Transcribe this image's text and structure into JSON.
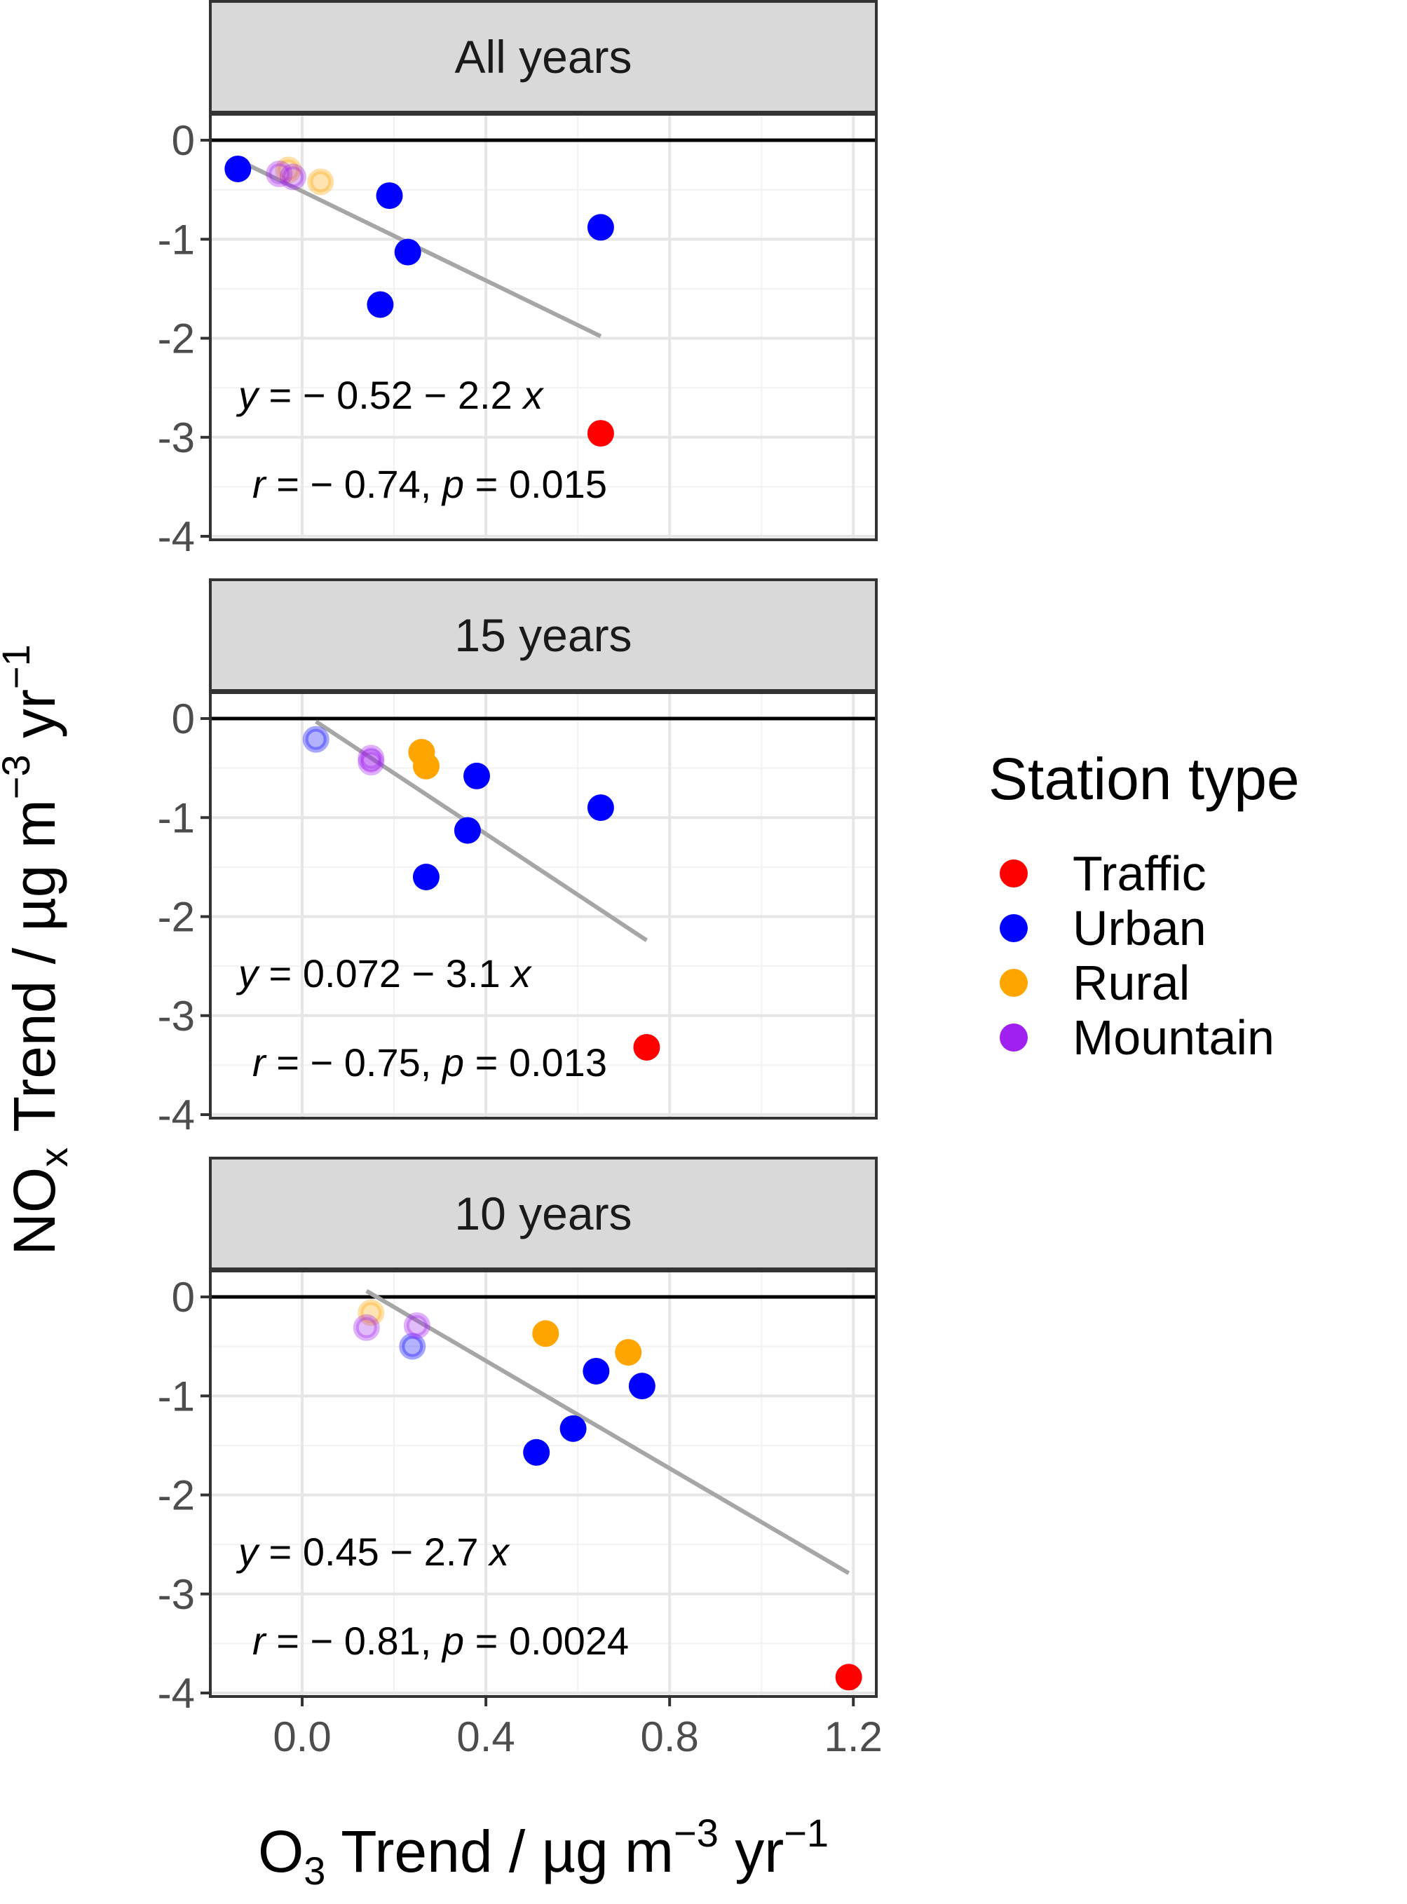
{
  "legend": {
    "title": "Station type",
    "items": [
      {
        "label": "Traffic",
        "color": "#ff0000"
      },
      {
        "label": "Urban",
        "color": "#0000ff"
      },
      {
        "label": "Rural",
        "color": "#ffa500"
      },
      {
        "label": "Mountain",
        "color": "#a020f0"
      }
    ]
  },
  "axes": {
    "x_title_main": "O",
    "x_title_sub": "3",
    "x_title_rest": " Trend / µg m",
    "x_title_sup1": "−3",
    "x_title_rest2": " yr",
    "x_title_sup2": "−1",
    "y_title_main": "NO",
    "y_title_sub": "x",
    "y_title_rest": " Trend / µg m",
    "y_title_sup1": "−3",
    "y_title_rest2": " yr",
    "y_title_sup2": "−1"
  },
  "chart_data": {
    "type": "scatter",
    "xlabel": "O3 Trend / µg m−3 yr−1",
    "ylabel": "NOx Trend / µg m−3 yr−1",
    "xlim": [
      -0.2,
      1.25
    ],
    "ylim": [
      -4,
      0
    ],
    "x_ticks": [
      {
        "value": 0.0,
        "label": "0.0"
      },
      {
        "value": 0.4,
        "label": "0.4"
      },
      {
        "value": 0.8,
        "label": "0.8"
      },
      {
        "value": 1.2,
        "label": "1.2"
      }
    ],
    "y_ticks": [
      {
        "value": 0,
        "label": "0"
      },
      {
        "value": -1,
        "label": "-1"
      },
      {
        "value": -2,
        "label": "-2"
      },
      {
        "value": -3,
        "label": "-3"
      },
      {
        "value": -4,
        "label": "-4"
      }
    ],
    "grid": true,
    "legend_position": "right",
    "reference_line_y": 0,
    "panels": [
      {
        "title": "All years",
        "regression": {
          "x_start": -0.14,
          "y_start": -0.2,
          "x_end": 0.65,
          "y_end": -1.98
        },
        "eq_y_text": "= − 0.52 − 2.2 ",
        "eq_r_text": " = − 0.74, ",
        "eq_p_text": " = 0.015",
        "points": [
          {
            "x": -0.14,
            "y": -0.29,
            "type": "Urban",
            "faded": false
          },
          {
            "x": 0.19,
            "y": -0.56,
            "type": "Urban",
            "faded": false
          },
          {
            "x": 0.23,
            "y": -1.13,
            "type": "Urban",
            "faded": false
          },
          {
            "x": 0.17,
            "y": -1.66,
            "type": "Urban",
            "faded": false
          },
          {
            "x": 0.65,
            "y": -0.88,
            "type": "Urban",
            "faded": false
          },
          {
            "x": 0.65,
            "y": -2.96,
            "type": "Traffic",
            "faded": false
          },
          {
            "x": -0.03,
            "y": -0.3,
            "type": "Rural",
            "faded": true
          },
          {
            "x": 0.04,
            "y": -0.42,
            "type": "Rural",
            "faded": true
          },
          {
            "x": -0.05,
            "y": -0.34,
            "type": "Mountain",
            "faded": true
          },
          {
            "x": -0.02,
            "y": -0.37,
            "type": "Mountain",
            "faded": true
          }
        ]
      },
      {
        "title": "15 years",
        "regression": {
          "x_start": 0.03,
          "y_start": -0.03,
          "x_end": 0.75,
          "y_end": -2.24
        },
        "eq_y_text": "= 0.072 − 3.1 ",
        "eq_r_text": " = − 0.75, ",
        "eq_p_text": " = 0.013",
        "points": [
          {
            "x": 0.38,
            "y": -0.58,
            "type": "Urban",
            "faded": false
          },
          {
            "x": 0.36,
            "y": -1.13,
            "type": "Urban",
            "faded": false
          },
          {
            "x": 0.27,
            "y": -1.6,
            "type": "Urban",
            "faded": false
          },
          {
            "x": 0.65,
            "y": -0.9,
            "type": "Urban",
            "faded": false
          },
          {
            "x": 0.75,
            "y": -3.32,
            "type": "Traffic",
            "faded": false
          },
          {
            "x": 0.26,
            "y": -0.34,
            "type": "Rural",
            "faded": false
          },
          {
            "x": 0.27,
            "y": -0.48,
            "type": "Rural",
            "faded": false
          },
          {
            "x": 0.03,
            "y": -0.21,
            "type": "Urban",
            "faded": true
          },
          {
            "x": 0.15,
            "y": -0.4,
            "type": "Mountain",
            "faded": true
          },
          {
            "x": 0.15,
            "y": -0.44,
            "type": "Mountain",
            "faded": true
          }
        ]
      },
      {
        "title": "10 years",
        "regression": {
          "x_start": 0.14,
          "y_start": 0.06,
          "x_end": 1.19,
          "y_end": -2.79
        },
        "eq_y_text": "= 0.45 − 2.7 ",
        "eq_r_text": " = − 0.81, ",
        "eq_p_text": " = 0.0024",
        "points": [
          {
            "x": 0.64,
            "y": -0.75,
            "type": "Urban",
            "faded": false
          },
          {
            "x": 0.74,
            "y": -0.9,
            "type": "Urban",
            "faded": false
          },
          {
            "x": 0.59,
            "y": -1.33,
            "type": "Urban",
            "faded": false
          },
          {
            "x": 0.51,
            "y": -1.57,
            "type": "Urban",
            "faded": false
          },
          {
            "x": 1.19,
            "y": -3.84,
            "type": "Traffic",
            "faded": false
          },
          {
            "x": 0.53,
            "y": -0.37,
            "type": "Rural",
            "faded": false
          },
          {
            "x": 0.71,
            "y": -0.56,
            "type": "Rural",
            "faded": false
          },
          {
            "x": 0.15,
            "y": -0.16,
            "type": "Rural",
            "faded": true
          },
          {
            "x": 0.24,
            "y": -0.5,
            "type": "Urban",
            "faded": true
          },
          {
            "x": 0.14,
            "y": -0.31,
            "type": "Mountain",
            "faded": true
          },
          {
            "x": 0.25,
            "y": -0.29,
            "type": "Mountain",
            "faded": true
          }
        ]
      }
    ]
  }
}
